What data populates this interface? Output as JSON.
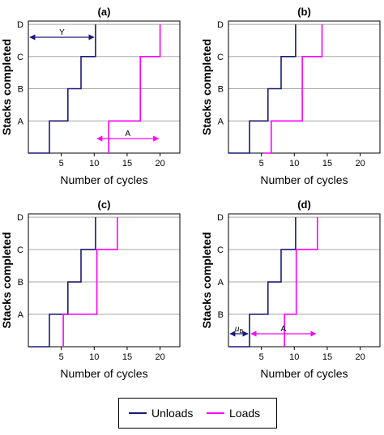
{
  "colors": {
    "unloads": "#1a1a7a",
    "loads": "#ff00ff",
    "grid": "#a8a8a8",
    "axis": "#000000"
  },
  "legend": {
    "unloads_label": "Unloads",
    "loads_label": "Loads",
    "placement": "bottom"
  },
  "chart_data": [
    {
      "type": "line",
      "title": "(a)",
      "xlabel": "Number of cycles",
      "ylabel": "Stacks completed",
      "xlim": [
        0,
        23
      ],
      "ylim": [
        0,
        4
      ],
      "x_ticks": [
        5,
        10,
        15,
        20
      ],
      "y_ticks": [
        "A",
        "B",
        "C",
        "D"
      ],
      "grid": "horizontal",
      "series": [
        {
          "name": "Unloads",
          "x": [
            0,
            3.2,
            3.2,
            6,
            6,
            8,
            8,
            10.2,
            10.2
          ],
          "y": [
            0,
            0,
            1,
            1,
            2,
            2,
            3,
            3,
            4
          ]
        },
        {
          "name": "Loads",
          "x": [
            12.2,
            12.2,
            17,
            17,
            20,
            20
          ],
          "y": [
            0,
            1,
            1,
            3,
            3,
            4
          ]
        }
      ],
      "annotations": [
        {
          "label": "Y",
          "series": "Unloads",
          "from": [
            0,
            3.6
          ],
          "to": [
            10.2,
            3.6
          ]
        },
        {
          "label": "A",
          "series": "Loads",
          "from": [
            10.2,
            0.45
          ],
          "to": [
            20,
            0.45
          ]
        }
      ]
    },
    {
      "type": "line",
      "title": "(b)",
      "xlabel": "Number of cycles",
      "ylabel": "Stacks completed",
      "xlim": [
        0,
        23
      ],
      "ylim": [
        0,
        4
      ],
      "x_ticks": [
        5,
        10,
        15,
        20
      ],
      "y_ticks": [
        "A",
        "B",
        "C",
        "D"
      ],
      "grid": "horizontal",
      "series": [
        {
          "name": "Unloads",
          "x": [
            0,
            3.2,
            3.2,
            6,
            6,
            8,
            8,
            10.2,
            10.2
          ],
          "y": [
            0,
            0,
            1,
            1,
            2,
            2,
            3,
            3,
            4
          ]
        },
        {
          "name": "Loads",
          "x": [
            5.3,
            6.5,
            6.5,
            11.2,
            11.2,
            14.2,
            14.2
          ],
          "y": [
            0,
            0,
            1,
            1,
            3,
            3,
            4
          ]
        }
      ],
      "annotations": []
    },
    {
      "type": "line",
      "title": "(c)",
      "xlabel": "Number of cycles",
      "ylabel": "Stacks completed",
      "xlim": [
        0,
        23
      ],
      "ylim": [
        0,
        4
      ],
      "x_ticks": [
        5,
        10,
        15,
        20
      ],
      "y_ticks": [
        "A",
        "B",
        "C",
        "D"
      ],
      "grid": "horizontal",
      "series": [
        {
          "name": "Unloads",
          "x": [
            0,
            3.2,
            3.2,
            6,
            6,
            8,
            8,
            10.2,
            10.2
          ],
          "y": [
            0,
            0,
            1,
            1,
            2,
            2,
            3,
            3,
            4
          ]
        },
        {
          "name": "Loads",
          "x": [
            5.3,
            5.3,
            10.4,
            10.4,
            13.5,
            13.5
          ],
          "y": [
            0,
            1,
            1,
            3,
            3,
            4
          ]
        }
      ],
      "annotations": []
    },
    {
      "type": "line",
      "title": "(d)",
      "xlabel": "Number of cycles",
      "ylabel": "Stacks completed",
      "xlim": [
        0,
        23
      ],
      "ylim": [
        0,
        4
      ],
      "x_ticks": [
        5,
        10,
        15,
        20
      ],
      "y_ticks": [
        "B",
        "A",
        "C",
        "D"
      ],
      "grid": "horizontal",
      "series": [
        {
          "name": "Unloads",
          "x": [
            0,
            3.2,
            3.2,
            6,
            6,
            8,
            8,
            10.2,
            10.2
          ],
          "y": [
            0,
            0,
            1,
            1,
            2,
            2,
            3,
            3,
            4
          ]
        },
        {
          "name": "Loads",
          "x": [
            8.5,
            8.5,
            10.3,
            10.3,
            13.5,
            13.5
          ],
          "y": [
            0,
            1,
            1,
            3,
            3,
            4
          ]
        }
      ],
      "annotations": [
        {
          "label": "u",
          "subscript": "B",
          "series": "Unloads",
          "from": [
            0,
            0.4
          ],
          "to": [
            3.2,
            0.4
          ]
        },
        {
          "label": "A",
          "series": "Loads",
          "from": [
            3.2,
            0.4
          ],
          "to": [
            13.5,
            0.4
          ]
        }
      ]
    }
  ]
}
